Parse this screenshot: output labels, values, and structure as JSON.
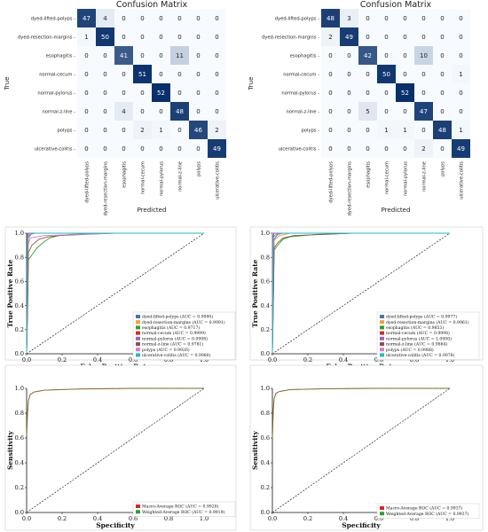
{
  "chart_data": [
    {
      "type": "heatmap",
      "title": "Confusion Matrix",
      "xlabel": "Predicted",
      "ylabel": "True",
      "classes": [
        "dyed-lifted-polyps",
        "dyed-resection-margins",
        "esophagitis",
        "normal-cecum",
        "normal-pylorus",
        "normal-z-line",
        "polyps",
        "ulcerative-colitis"
      ],
      "values": [
        [
          47,
          4,
          0,
          0,
          0,
          0,
          0,
          0
        ],
        [
          1,
          50,
          0,
          0,
          0,
          0,
          0,
          0
        ],
        [
          0,
          0,
          41,
          0,
          0,
          11,
          0,
          0
        ],
        [
          0,
          0,
          0,
          51,
          0,
          0,
          0,
          0
        ],
        [
          0,
          0,
          0,
          0,
          52,
          0,
          0,
          0
        ],
        [
          0,
          0,
          4,
          0,
          0,
          48,
          0,
          0
        ],
        [
          0,
          0,
          0,
          2,
          1,
          0,
          46,
          2
        ],
        [
          0,
          0,
          0,
          0,
          0,
          0,
          0,
          49
        ]
      ]
    },
    {
      "type": "heatmap",
      "title": "Confusion Matrix",
      "xlabel": "Predicted",
      "ylabel": "True",
      "classes": [
        "dyed-lifted-polyps",
        "dyed-resection-margins",
        "esophagitis",
        "normal-cecum",
        "normal-pylorus",
        "normal-z-line",
        "polyps",
        "ulcerative-colitis"
      ],
      "values": [
        [
          48,
          3,
          0,
          0,
          0,
          0,
          0,
          0
        ],
        [
          2,
          49,
          0,
          0,
          0,
          0,
          0,
          0
        ],
        [
          0,
          0,
          42,
          0,
          0,
          10,
          0,
          0
        ],
        [
          0,
          0,
          0,
          50,
          0,
          0,
          0,
          1
        ],
        [
          0,
          0,
          0,
          0,
          52,
          0,
          0,
          0
        ],
        [
          0,
          0,
          5,
          0,
          0,
          47,
          0,
          0
        ],
        [
          0,
          0,
          0,
          1,
          1,
          0,
          48,
          1
        ],
        [
          0,
          0,
          0,
          0,
          0,
          2,
          0,
          49
        ]
      ]
    },
    {
      "type": "line",
      "xlabel": "False Positive Rate",
      "ylabel": "True Positive Rate",
      "xlim": [
        0,
        1
      ],
      "ylim": [
        0,
        1
      ],
      "xticks": [
        "0.0",
        "0.2",
        "0.4",
        "0.6",
        "0.8",
        "1.0"
      ],
      "yticks": [
        "0.0",
        "0.2",
        "0.4",
        "0.6",
        "0.8",
        "1.0"
      ],
      "legend_position": "lower-right",
      "series": [
        {
          "name": "dyed-lifted-polyps (AUC = 0.9990)",
          "color": "#3a78b8",
          "points": [
            [
              0,
              0
            ],
            [
              0.01,
              0.96
            ],
            [
              0.03,
              1.0
            ],
            [
              1,
              1
            ]
          ]
        },
        {
          "name": "dyed-resection-margins (AUC = 0.9991)",
          "color": "#ff9a2e",
          "points": [
            [
              0,
              0
            ],
            [
              0.01,
              0.98
            ],
            [
              0.02,
              1.0
            ],
            [
              1,
              1
            ]
          ]
        },
        {
          "name": "esophagitis (AUC = 0.9717)",
          "color": "#2ca02c",
          "points": [
            [
              0,
              0
            ],
            [
              0.005,
              0.35
            ],
            [
              0.01,
              0.78
            ],
            [
              0.04,
              0.84
            ],
            [
              0.06,
              0.88
            ],
            [
              0.1,
              0.93
            ],
            [
              0.13,
              0.96
            ],
            [
              0.18,
              0.98
            ],
            [
              0.5,
              1.0
            ],
            [
              1,
              1
            ]
          ]
        },
        {
          "name": "normal-cecum (AUC = 0.9999)",
          "color": "#d62728",
          "points": [
            [
              0,
              0
            ],
            [
              0.005,
              0.98
            ],
            [
              0.01,
              1.0
            ],
            [
              1,
              1
            ]
          ]
        },
        {
          "name": "normal-pylorus (AUC = 0.9998)",
          "color": "#9467bd",
          "points": [
            [
              0,
              0
            ],
            [
              0.005,
              1.0
            ],
            [
              1,
              1
            ]
          ]
        },
        {
          "name": "normal-z-line (AUC = 0.9781)",
          "color": "#8c564b",
          "points": [
            [
              0,
              0
            ],
            [
              0.005,
              0.3
            ],
            [
              0.01,
              0.84
            ],
            [
              0.03,
              0.9
            ],
            [
              0.07,
              0.95
            ],
            [
              0.12,
              0.97
            ],
            [
              0.25,
              0.99
            ],
            [
              0.5,
              1.0
            ],
            [
              1,
              1
            ]
          ]
        },
        {
          "name": "polyps (AUC = 0.9926)",
          "color": "#e377c2",
          "points": [
            [
              0,
              0
            ],
            [
              0.005,
              0.88
            ],
            [
              0.02,
              0.96
            ],
            [
              0.1,
              0.98
            ],
            [
              0.3,
              0.99
            ],
            [
              0.5,
              1.0
            ],
            [
              1,
              1
            ]
          ]
        },
        {
          "name": "ulcerative-colitis (AUC = 0.9980)",
          "color": "#17becf",
          "points": [
            [
              0,
              0
            ],
            [
              0.005,
              0.97
            ],
            [
              0.02,
              0.99
            ],
            [
              0.05,
              1.0
            ],
            [
              1,
              1
            ]
          ]
        }
      ]
    },
    {
      "type": "line",
      "xlabel": "False Positive Rate",
      "ylabel": "True Positive Rate",
      "xlim": [
        0,
        1
      ],
      "ylim": [
        0,
        1
      ],
      "xticks": [
        "0.0",
        "0.2",
        "0.4",
        "0.6",
        "0.8",
        "1.0"
      ],
      "yticks": [
        "0.0",
        "0.2",
        "0.4",
        "0.6",
        "0.8",
        "1.0"
      ],
      "legend_position": "lower-right",
      "series": [
        {
          "name": "dyed-lifted-polyps (AUC = 0.9977)",
          "color": "#3a78b8",
          "points": [
            [
              0,
              0
            ],
            [
              0.01,
              0.95
            ],
            [
              0.03,
              0.99
            ],
            [
              0.06,
              1.0
            ],
            [
              1,
              1
            ]
          ]
        },
        {
          "name": "dyed-resection-margins (AUC = 0.9961)",
          "color": "#ff9a2e",
          "points": [
            [
              0,
              0
            ],
            [
              0.01,
              0.94
            ],
            [
              0.04,
              0.98
            ],
            [
              0.1,
              1.0
            ],
            [
              1,
              1
            ]
          ]
        },
        {
          "name": "esophagitis (AUC = 0.9853)",
          "color": "#2ca02c",
          "points": [
            [
              0,
              0
            ],
            [
              0.005,
              0.4
            ],
            [
              0.01,
              0.86
            ],
            [
              0.03,
              0.9
            ],
            [
              0.06,
              0.95
            ],
            [
              0.1,
              0.97
            ],
            [
              0.25,
              0.99
            ],
            [
              0.45,
              1.0
            ],
            [
              1,
              1
            ]
          ]
        },
        {
          "name": "normal-cecum (AUC = 0.9998)",
          "color": "#d62728",
          "points": [
            [
              0,
              0
            ],
            [
              0.005,
              0.98
            ],
            [
              0.01,
              1.0
            ],
            [
              1,
              1
            ]
          ]
        },
        {
          "name": "normal-pylorus (AUC = 1.0000)",
          "color": "#9467bd",
          "points": [
            [
              0,
              0
            ],
            [
              0,
              1.0
            ],
            [
              1,
              1
            ]
          ]
        },
        {
          "name": "normal-z-line (AUC = 0.9864)",
          "color": "#8c564b",
          "points": [
            [
              0,
              0
            ],
            [
              0.005,
              0.4
            ],
            [
              0.01,
              0.88
            ],
            [
              0.03,
              0.92
            ],
            [
              0.06,
              0.96
            ],
            [
              0.12,
              0.98
            ],
            [
              0.3,
              0.99
            ],
            [
              0.45,
              1.0
            ],
            [
              1,
              1
            ]
          ]
        },
        {
          "name": "polyps (AUC = 0.9988)",
          "color": "#e377c2",
          "points": [
            [
              0,
              0
            ],
            [
              0.005,
              0.96
            ],
            [
              0.02,
              0.99
            ],
            [
              0.05,
              1.0
            ],
            [
              1,
              1
            ]
          ]
        },
        {
          "name": "ulcerative-colitis (AUC = 0.9978)",
          "color": "#17becf",
          "points": [
            [
              0,
              0
            ],
            [
              0.005,
              0.97
            ],
            [
              0.02,
              0.99
            ],
            [
              0.06,
              1.0
            ],
            [
              1,
              1
            ]
          ]
        }
      ]
    },
    {
      "type": "line",
      "xlabel": "Specificity",
      "ylabel": "Sensitivity",
      "xlim": [
        0,
        1
      ],
      "ylim": [
        0,
        1
      ],
      "xticks": [
        "0.0",
        "0.2",
        "0.4",
        "0.6",
        "0.8",
        "1.0"
      ],
      "yticks": [
        "0.0",
        "0.2",
        "0.4",
        "0.6",
        "0.8",
        "1.0"
      ],
      "legend_position": "lower-right",
      "series": [
        {
          "name": "Macro-Average ROC (AUC = 0.9920)",
          "color": "#d62728",
          "points": [
            [
              0,
              0.62
            ],
            [
              0.005,
              0.8
            ],
            [
              0.01,
              0.9
            ],
            [
              0.02,
              0.95
            ],
            [
              0.04,
              0.97
            ],
            [
              0.1,
              0.985
            ],
            [
              0.3,
              0.995
            ],
            [
              0.6,
              1.0
            ],
            [
              1,
              1
            ]
          ]
        },
        {
          "name": "Weighted-Average ROC (AUC = 0.9919)",
          "color": "#2ca02c",
          "points": [
            [
              0,
              0.62
            ],
            [
              0.005,
              0.8
            ],
            [
              0.01,
              0.9
            ],
            [
              0.02,
              0.95
            ],
            [
              0.04,
              0.97
            ],
            [
              0.1,
              0.985
            ],
            [
              0.3,
              0.995
            ],
            [
              0.6,
              1.0
            ],
            [
              1,
              1
            ]
          ]
        }
      ]
    },
    {
      "type": "line",
      "xlabel": "Specificity",
      "ylabel": "Sensitivity",
      "xlim": [
        0,
        1
      ],
      "ylim": [
        0,
        1
      ],
      "xticks": [
        "0.0",
        "0.2",
        "0.4",
        "0.6",
        "0.8",
        "1.0"
      ],
      "yticks": [
        "0.0",
        "0.2",
        "0.4",
        "0.6",
        "0.8",
        "1.0"
      ],
      "legend_position": "lower-right",
      "series": [
        {
          "name": "Macro-Average ROC (AUC = 0.9937)",
          "color": "#d62728",
          "points": [
            [
              0,
              0.6
            ],
            [
              0.005,
              0.82
            ],
            [
              0.01,
              0.92
            ],
            [
              0.02,
              0.96
            ],
            [
              0.04,
              0.975
            ],
            [
              0.1,
              0.99
            ],
            [
              0.3,
              0.997
            ],
            [
              0.6,
              1.0
            ],
            [
              1,
              1
            ]
          ]
        },
        {
          "name": "Weighted-Average ROC (AUC = 0.9937)",
          "color": "#2ca02c",
          "points": [
            [
              0,
              0.6
            ],
            [
              0.005,
              0.82
            ],
            [
              0.01,
              0.92
            ],
            [
              0.02,
              0.96
            ],
            [
              0.04,
              0.975
            ],
            [
              0.1,
              0.99
            ],
            [
              0.3,
              0.997
            ],
            [
              0.6,
              1.0
            ],
            [
              1,
              1
            ]
          ]
        }
      ]
    }
  ]
}
